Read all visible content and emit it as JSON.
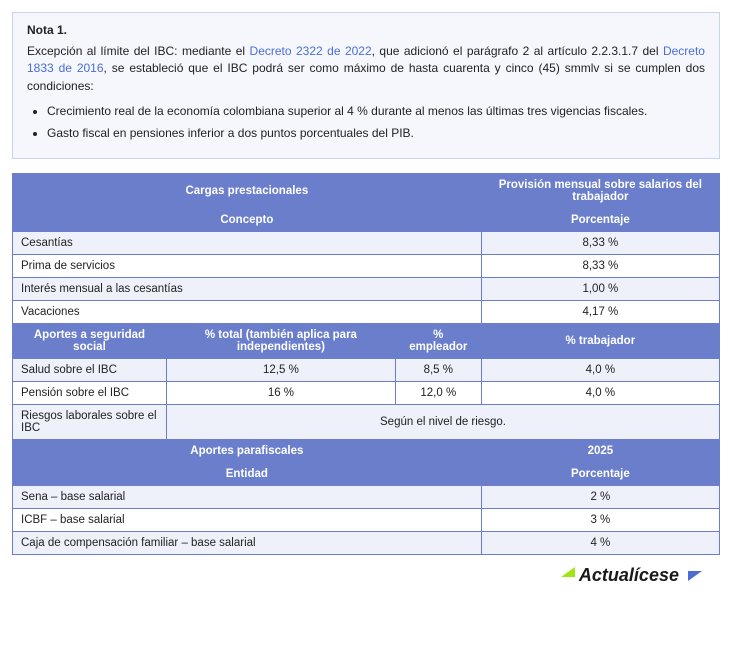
{
  "nota": {
    "title": "Nota 1.",
    "para_pre": "Excepción al límite del IBC: mediante el ",
    "link1": "Decreto 2322 de 2022",
    "para_mid1": ", que adicionó el parágrafo 2 al artículo 2.2.3.1.7 del ",
    "link2": "Decreto 1833 de 2016",
    "para_post": ", se estableció que el IBC podrá ser como máximo de hasta cuarenta y cinco (45) smmlv si se cumplen dos condiciones:",
    "cond1": "Crecimiento real de la economía colombiana superior al 4 % durante al menos las últimas tres vigencias fiscales.",
    "cond2": "Gasto fiscal en pensiones inferior a dos puntos porcentuales del PIB."
  },
  "table": {
    "h_cargas": "Cargas prestacionales",
    "h_provision": "Provisión mensual sobre salarios del trabajador",
    "h_concepto": "Concepto",
    "h_porcentaje": "Porcentaje",
    "r_cesantias": "Cesantías",
    "r_cesantias_pct": "8,33 %",
    "r_prima": "Prima de servicios",
    "r_prima_pct": "8,33 %",
    "r_interes": "Interés mensual a las cesantías",
    "r_interes_pct": "1,00 %",
    "r_vac": "Vacaciones",
    "r_vac_pct": "4,17 %",
    "h_aportes": "Aportes a seguridad social",
    "h_total": "% total (también aplica para independientes)",
    "h_empleador": "% empleador",
    "h_trabajador": "% trabajador",
    "r_salud": "Salud sobre el IBC",
    "r_salud_tot": "12,5 %",
    "r_salud_emp": "8,5 %",
    "r_salud_trab": "4,0 %",
    "r_pension": "Pensión sobre el IBC",
    "r_pension_tot": "16 %",
    "r_pension_emp": "12,0 %",
    "r_pension_trab": "4,0 %",
    "r_riesgos": "Riesgos laborales sobre el IBC",
    "r_riesgos_val": "Según el nivel de riesgo.",
    "h_parafisc": "Aportes parafiscales",
    "h_2025": "2025",
    "h_entidad": "Entidad",
    "h_porcentaje2": "Porcentaje",
    "r_sena": "Sena – base salarial",
    "r_sena_pct": "2 %",
    "r_icbf": "ICBF – base salarial",
    "r_icbf_pct": "3 %",
    "r_caja": "Caja de compensación familiar – base salarial",
    "r_caja_pct": "4 %"
  },
  "logo": {
    "text": "Actualícese"
  }
}
